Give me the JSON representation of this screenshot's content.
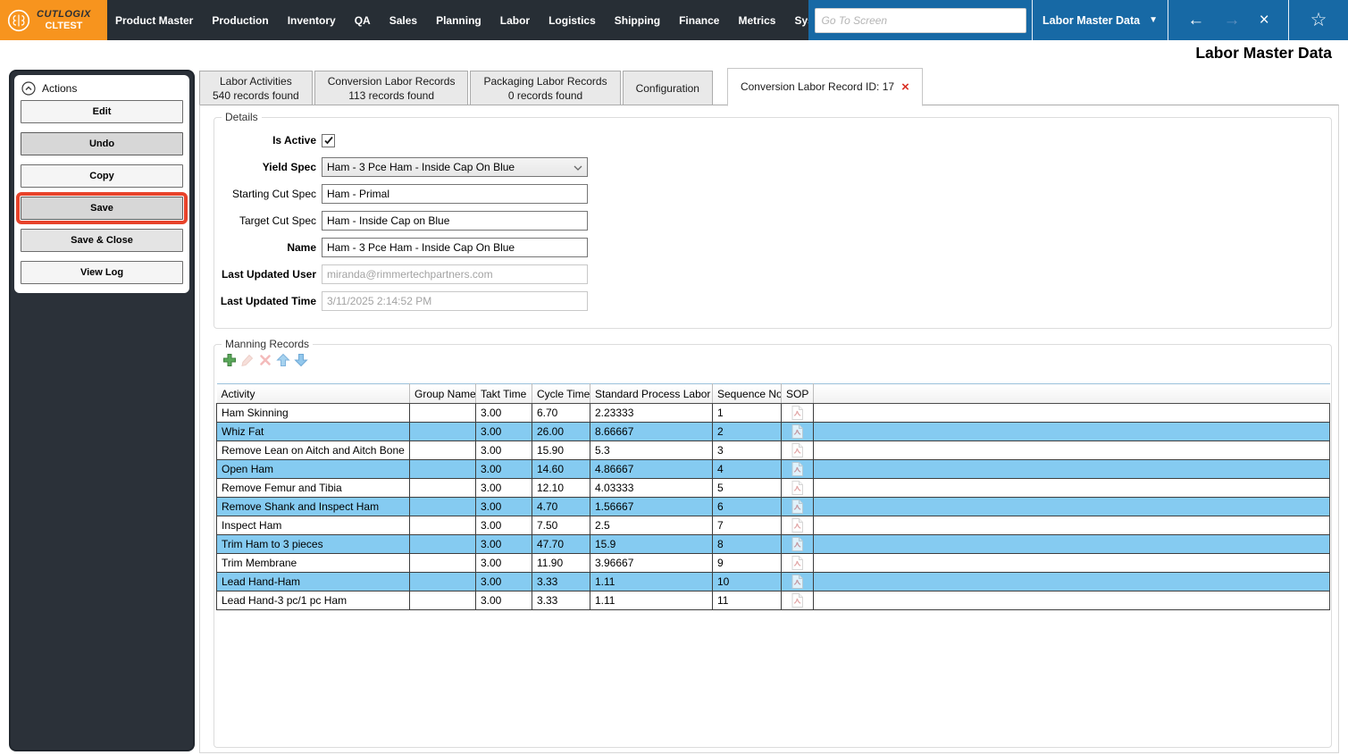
{
  "topbar": {
    "brand": "CUTLOGIX",
    "env": "CLTEST",
    "menu": [
      "Product Master",
      "Production",
      "Inventory",
      "QA",
      "Sales",
      "Planning",
      "Labor",
      "Logistics",
      "Shipping",
      "Finance",
      "Metrics",
      "System"
    ],
    "search_placeholder": "Go To Screen",
    "screen_dropdown": "Labor Master Data",
    "icons": {
      "logo": "brain-icon",
      "dropdown": "▼",
      "back": "←",
      "forward": "→",
      "close": "×",
      "favorite": "☆"
    }
  },
  "page_title": "Labor Master Data",
  "actions": {
    "title": "Actions",
    "collapse_icon": "chevron-up-circle-icon",
    "buttons": [
      {
        "label": "Edit",
        "variant": "light",
        "highlighted": false
      },
      {
        "label": "Undo",
        "variant": "mid",
        "highlighted": false
      },
      {
        "label": "Copy",
        "variant": "light",
        "highlighted": false
      },
      {
        "label": "Save",
        "variant": "mid",
        "highlighted": true
      },
      {
        "label": "Save & Close",
        "variant": "midlight",
        "highlighted": false
      },
      {
        "label": "View Log",
        "variant": "light",
        "highlighted": false
      }
    ]
  },
  "tabs": [
    {
      "line1": "Labor Activities",
      "line2": "540 records found",
      "active": false,
      "closable": false
    },
    {
      "line1": "Conversion Labor Records",
      "line2": "113 records found",
      "active": false,
      "closable": false
    },
    {
      "line1": "Packaging Labor Records",
      "line2": "0 records found",
      "active": false,
      "closable": false
    },
    {
      "line1": "Configuration",
      "line2": "",
      "active": false,
      "closable": false
    },
    {
      "line1": "Conversion Labor Record ID: 17",
      "line2": "",
      "active": true,
      "closable": true
    }
  ],
  "details": {
    "legend": "Details",
    "fields": [
      {
        "label": "Is Active",
        "bold": true,
        "type": "checkbox",
        "checked": true
      },
      {
        "label": "Yield Spec",
        "bold": true,
        "type": "select",
        "value": "Ham - 3 Pce Ham - Inside Cap On Blue"
      },
      {
        "label": "Starting Cut Spec",
        "bold": false,
        "type": "text",
        "value": "Ham - Primal",
        "disabled": false
      },
      {
        "label": "Target Cut Spec",
        "bold": false,
        "type": "text",
        "value": "Ham - Inside Cap on Blue",
        "disabled": false
      },
      {
        "label": "Name",
        "bold": true,
        "type": "text",
        "value": "Ham - 3 Pce Ham - Inside Cap On Blue",
        "disabled": false
      },
      {
        "label": "Last Updated User",
        "bold": true,
        "type": "text",
        "value": "miranda@rimmertechpartners.com",
        "disabled": true
      },
      {
        "label": "Last Updated Time",
        "bold": true,
        "type": "text",
        "value": "3/11/2025 2:14:52 PM",
        "disabled": true
      }
    ]
  },
  "manning": {
    "legend": "Manning Records",
    "toolbar": [
      {
        "name": "add",
        "icon": "plus-icon",
        "enabled": true
      },
      {
        "name": "edit",
        "icon": "pencil-icon",
        "enabled": false
      },
      {
        "name": "delete",
        "icon": "x-icon",
        "enabled": false
      },
      {
        "name": "move-up",
        "icon": "arrow-up-icon",
        "enabled": true
      },
      {
        "name": "move-down",
        "icon": "arrow-down-icon",
        "enabled": true
      }
    ],
    "table": {
      "headers": [
        "Activity",
        "Group Name",
        "Takt Time",
        "Cycle Time",
        "Standard Process Labor",
        "Sequence No",
        "SOP"
      ],
      "sop_icon": "pdf-icon",
      "rows": [
        {
          "activity": "Ham Skinning",
          "group": "",
          "takt": "3.00",
          "cycle": "6.70",
          "spl": "2.23333",
          "seq": "1",
          "selected": false
        },
        {
          "activity": "Whiz Fat",
          "group": "",
          "takt": "3.00",
          "cycle": "26.00",
          "spl": "8.66667",
          "seq": "2",
          "selected": true
        },
        {
          "activity": "Remove Lean on Aitch and Aitch Bone",
          "group": "",
          "takt": "3.00",
          "cycle": "15.90",
          "spl": "5.3",
          "seq": "3",
          "selected": false
        },
        {
          "activity": "Open Ham",
          "group": "",
          "takt": "3.00",
          "cycle": "14.60",
          "spl": "4.86667",
          "seq": "4",
          "selected": true
        },
        {
          "activity": "Remove Femur and Tibia",
          "group": "",
          "takt": "3.00",
          "cycle": "12.10",
          "spl": "4.03333",
          "seq": "5",
          "selected": false
        },
        {
          "activity": "Remove Shank and Inspect Ham",
          "group": "",
          "takt": "3.00",
          "cycle": "4.70",
          "spl": "1.56667",
          "seq": "6",
          "selected": true
        },
        {
          "activity": "Inspect Ham",
          "group": "",
          "takt": "3.00",
          "cycle": "7.50",
          "spl": "2.5",
          "seq": "7",
          "selected": false
        },
        {
          "activity": "Trim Ham to 3 pieces",
          "group": "",
          "takt": "3.00",
          "cycle": "47.70",
          "spl": "15.9",
          "seq": "8",
          "selected": true
        },
        {
          "activity": "Trim Membrane",
          "group": "",
          "takt": "3.00",
          "cycle": "11.90",
          "spl": "3.96667",
          "seq": "9",
          "selected": false
        },
        {
          "activity": "Lead Hand-Ham",
          "group": "",
          "takt": "3.00",
          "cycle": "3.33",
          "spl": "1.11",
          "seq": "10",
          "selected": true
        },
        {
          "activity": "Lead Hand-3 pc/1 pc Ham",
          "group": "",
          "takt": "3.00",
          "cycle": "3.33",
          "spl": "1.11",
          "seq": "11",
          "selected": false
        }
      ]
    }
  },
  "colors": {
    "brand_orange": "#F7941E",
    "nav_dark": "#272E35",
    "nav_blue": "#1769A5",
    "row_selected_blue": "#85CBF1",
    "highlight_red": "#E8432B",
    "tab_close_red": "#D93025"
  }
}
